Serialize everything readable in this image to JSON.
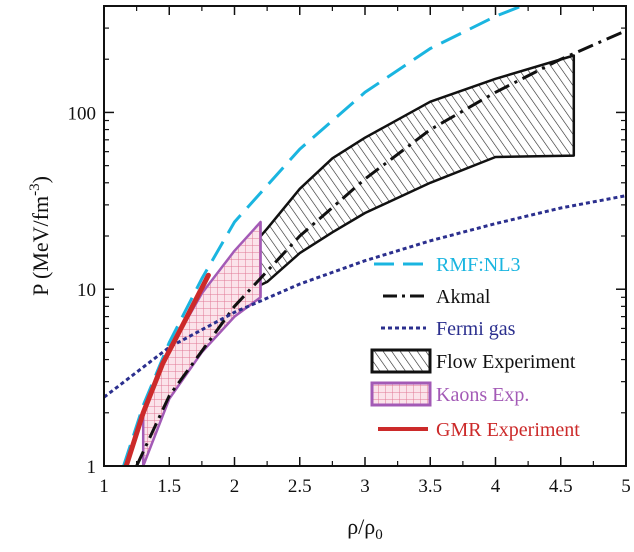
{
  "chart_data": {
    "type": "line",
    "xlabel": "ρ/ρ",
    "xlabel_sub": "0",
    "ylabel": "P (MeV/fm",
    "ylabel_sup": "-3",
    "ylabel_close": ")",
    "x_scale": "linear",
    "y_scale": "log",
    "xlim": [
      1,
      5
    ],
    "ylim": [
      1,
      400
    ],
    "xticks": [
      1,
      1.5,
      2,
      2.5,
      3,
      3.5,
      4,
      4.5,
      5
    ],
    "xtick_labels": [
      "1",
      "1.5",
      "2",
      "2.5",
      "3",
      "3.5",
      "4",
      "4.5",
      "5"
    ],
    "yticks": [
      1,
      10,
      100
    ],
    "ytick_labels": [
      "1",
      "10",
      "100"
    ],
    "legend_position": "lower-right",
    "series": [
      {
        "name": "RMF:NL3",
        "style": "long-dash",
        "color": "#1ab5e0",
        "x": [
          1.15,
          1.3,
          1.5,
          1.75,
          2.0,
          2.5,
          3.0,
          3.5,
          4.0,
          4.2
        ],
        "y": [
          1.0,
          2.2,
          5.0,
          11.5,
          24,
          62,
          130,
          230,
          350,
          400
        ]
      },
      {
        "name": "Akmal",
        "style": "dash-dot",
        "color": "#111111",
        "x": [
          1.25,
          1.5,
          2.0,
          2.5,
          3.0,
          3.5,
          4.0,
          4.5,
          5.0
        ],
        "y": [
          1.0,
          2.5,
          8.0,
          20,
          42,
          80,
          130,
          200,
          290
        ]
      },
      {
        "name": "Fermi gas",
        "style": "dotted",
        "color": "#2b2f8e",
        "x": [
          1.0,
          1.5,
          2.0,
          2.5,
          3.0,
          3.5,
          4.0,
          4.5,
          5.0
        ],
        "y": [
          2.45,
          4.7,
          7.4,
          10.7,
          14.5,
          18.8,
          23.5,
          28.8,
          33.8
        ]
      }
    ],
    "bands": [
      {
        "name": "Flow Experiment",
        "color": "#111111",
        "fill": "hatch",
        "x": [
          2.0,
          2.25,
          2.5,
          2.75,
          3.0,
          3.5,
          4.0,
          4.6
        ],
        "upper": [
          13.5,
          22,
          37,
          55,
          72,
          115,
          155,
          210
        ],
        "lower": [
          9.0,
          11,
          16,
          21,
          27,
          40,
          56,
          57
        ]
      },
      {
        "name": "Kaons Exp.",
        "color": "#a35ab6",
        "fill": "crosshatch",
        "x": [
          1.3,
          1.5,
          1.75,
          2.0,
          2.2
        ],
        "upper": [
          2.0,
          4.5,
          9.5,
          16.5,
          24
        ],
        "lower": [
          1.0,
          2.4,
          4.4,
          7.0,
          9.0
        ]
      }
    ],
    "segments": [
      {
        "name": "GMR Experiment",
        "color": "#cc2a2a",
        "x": [
          1.17,
          1.3,
          1.45,
          1.6,
          1.8
        ],
        "y": [
          1.0,
          2.0,
          3.8,
          6.2,
          12.0
        ]
      }
    ]
  },
  "legend": {
    "items": [
      {
        "label": "RMF:NL3",
        "color": "#1ab5e0"
      },
      {
        "label": "Akmal",
        "color": "#111111"
      },
      {
        "label": "Fermi gas",
        "color": "#2b2f8e"
      },
      {
        "label": "Flow Experiment",
        "color": "#111111"
      },
      {
        "label": "Kaons Exp.",
        "color": "#a35ab6"
      },
      {
        "label": "GMR Experiment",
        "color": "#cc2a2a"
      }
    ]
  }
}
